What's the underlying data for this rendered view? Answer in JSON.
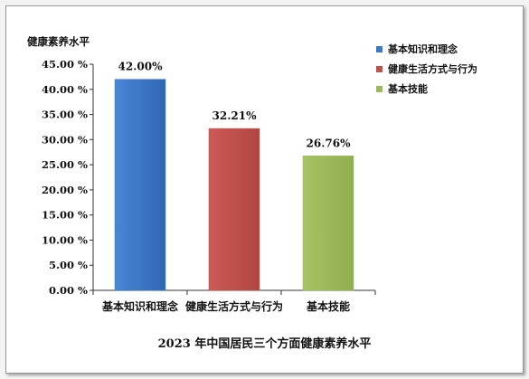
{
  "chart_data": {
    "type": "bar",
    "title": "2023 年中国居民三个方面健康素养水平",
    "ylabel": "健康素养水平",
    "categories": [
      "基本知识和理念",
      "健康生活方式与行为",
      "基本技能"
    ],
    "values": [
      42.0,
      32.21,
      26.76
    ],
    "value_labels": [
      "42.00%",
      "32.21%",
      "26.76%"
    ],
    "colors": [
      "#3c78c8",
      "#c0504d",
      "#9bbb59"
    ],
    "ylim": [
      0,
      45
    ],
    "yticks": [
      0,
      5,
      10,
      15,
      20,
      25,
      30,
      35,
      40,
      45
    ],
    "ytick_labels": [
      "0.00 %",
      "5.00 %",
      "10.00 %",
      "15.00 %",
      "20.00 %",
      "25.00 %",
      "30.00 %",
      "35.00 %",
      "40.00 %",
      "45.00 %"
    ],
    "legend": [
      "基本知识和理念",
      "健康生活方式与行为",
      "基本技能"
    ],
    "legend_position": "top-right",
    "grid": false
  }
}
